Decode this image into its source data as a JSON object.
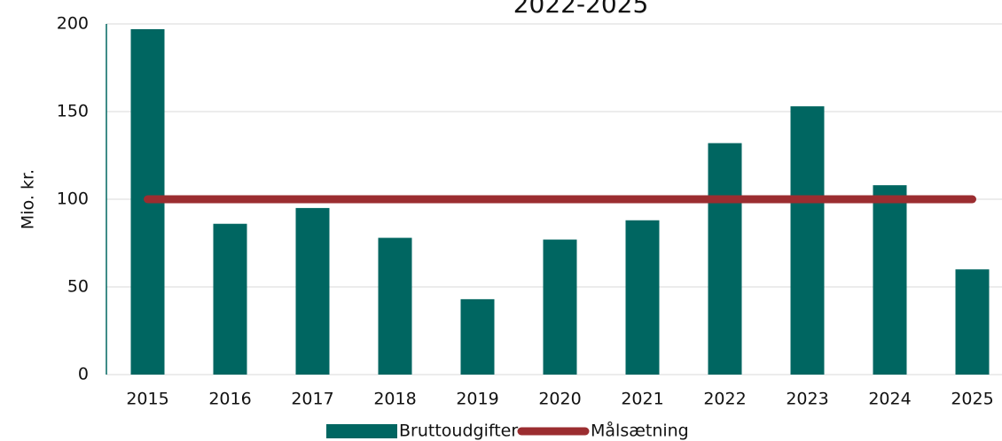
{
  "chart_data": {
    "type": "bar",
    "title": "2022-2025",
    "y_label": "Mio. kr.",
    "categories": [
      "2015",
      "2016",
      "2017",
      "2018",
      "2019",
      "2020",
      "2021",
      "2022",
      "2023",
      "2024",
      "2025"
    ],
    "series": [
      {
        "name": "Bruttoudgifter",
        "type": "bar",
        "color": "#006661",
        "values": [
          197,
          86,
          95,
          78,
          43,
          77,
          88,
          132,
          153,
          108,
          60
        ]
      },
      {
        "name": "Målsætning",
        "type": "line",
        "color": "#9b2d30",
        "values": [
          100,
          100,
          100,
          100,
          100,
          100,
          100,
          100,
          100,
          100,
          100
        ]
      }
    ],
    "ylim": [
      0,
      200
    ],
    "yticks": [
      0,
      50,
      100,
      150,
      200
    ],
    "grid": true,
    "legend": "bottom"
  }
}
